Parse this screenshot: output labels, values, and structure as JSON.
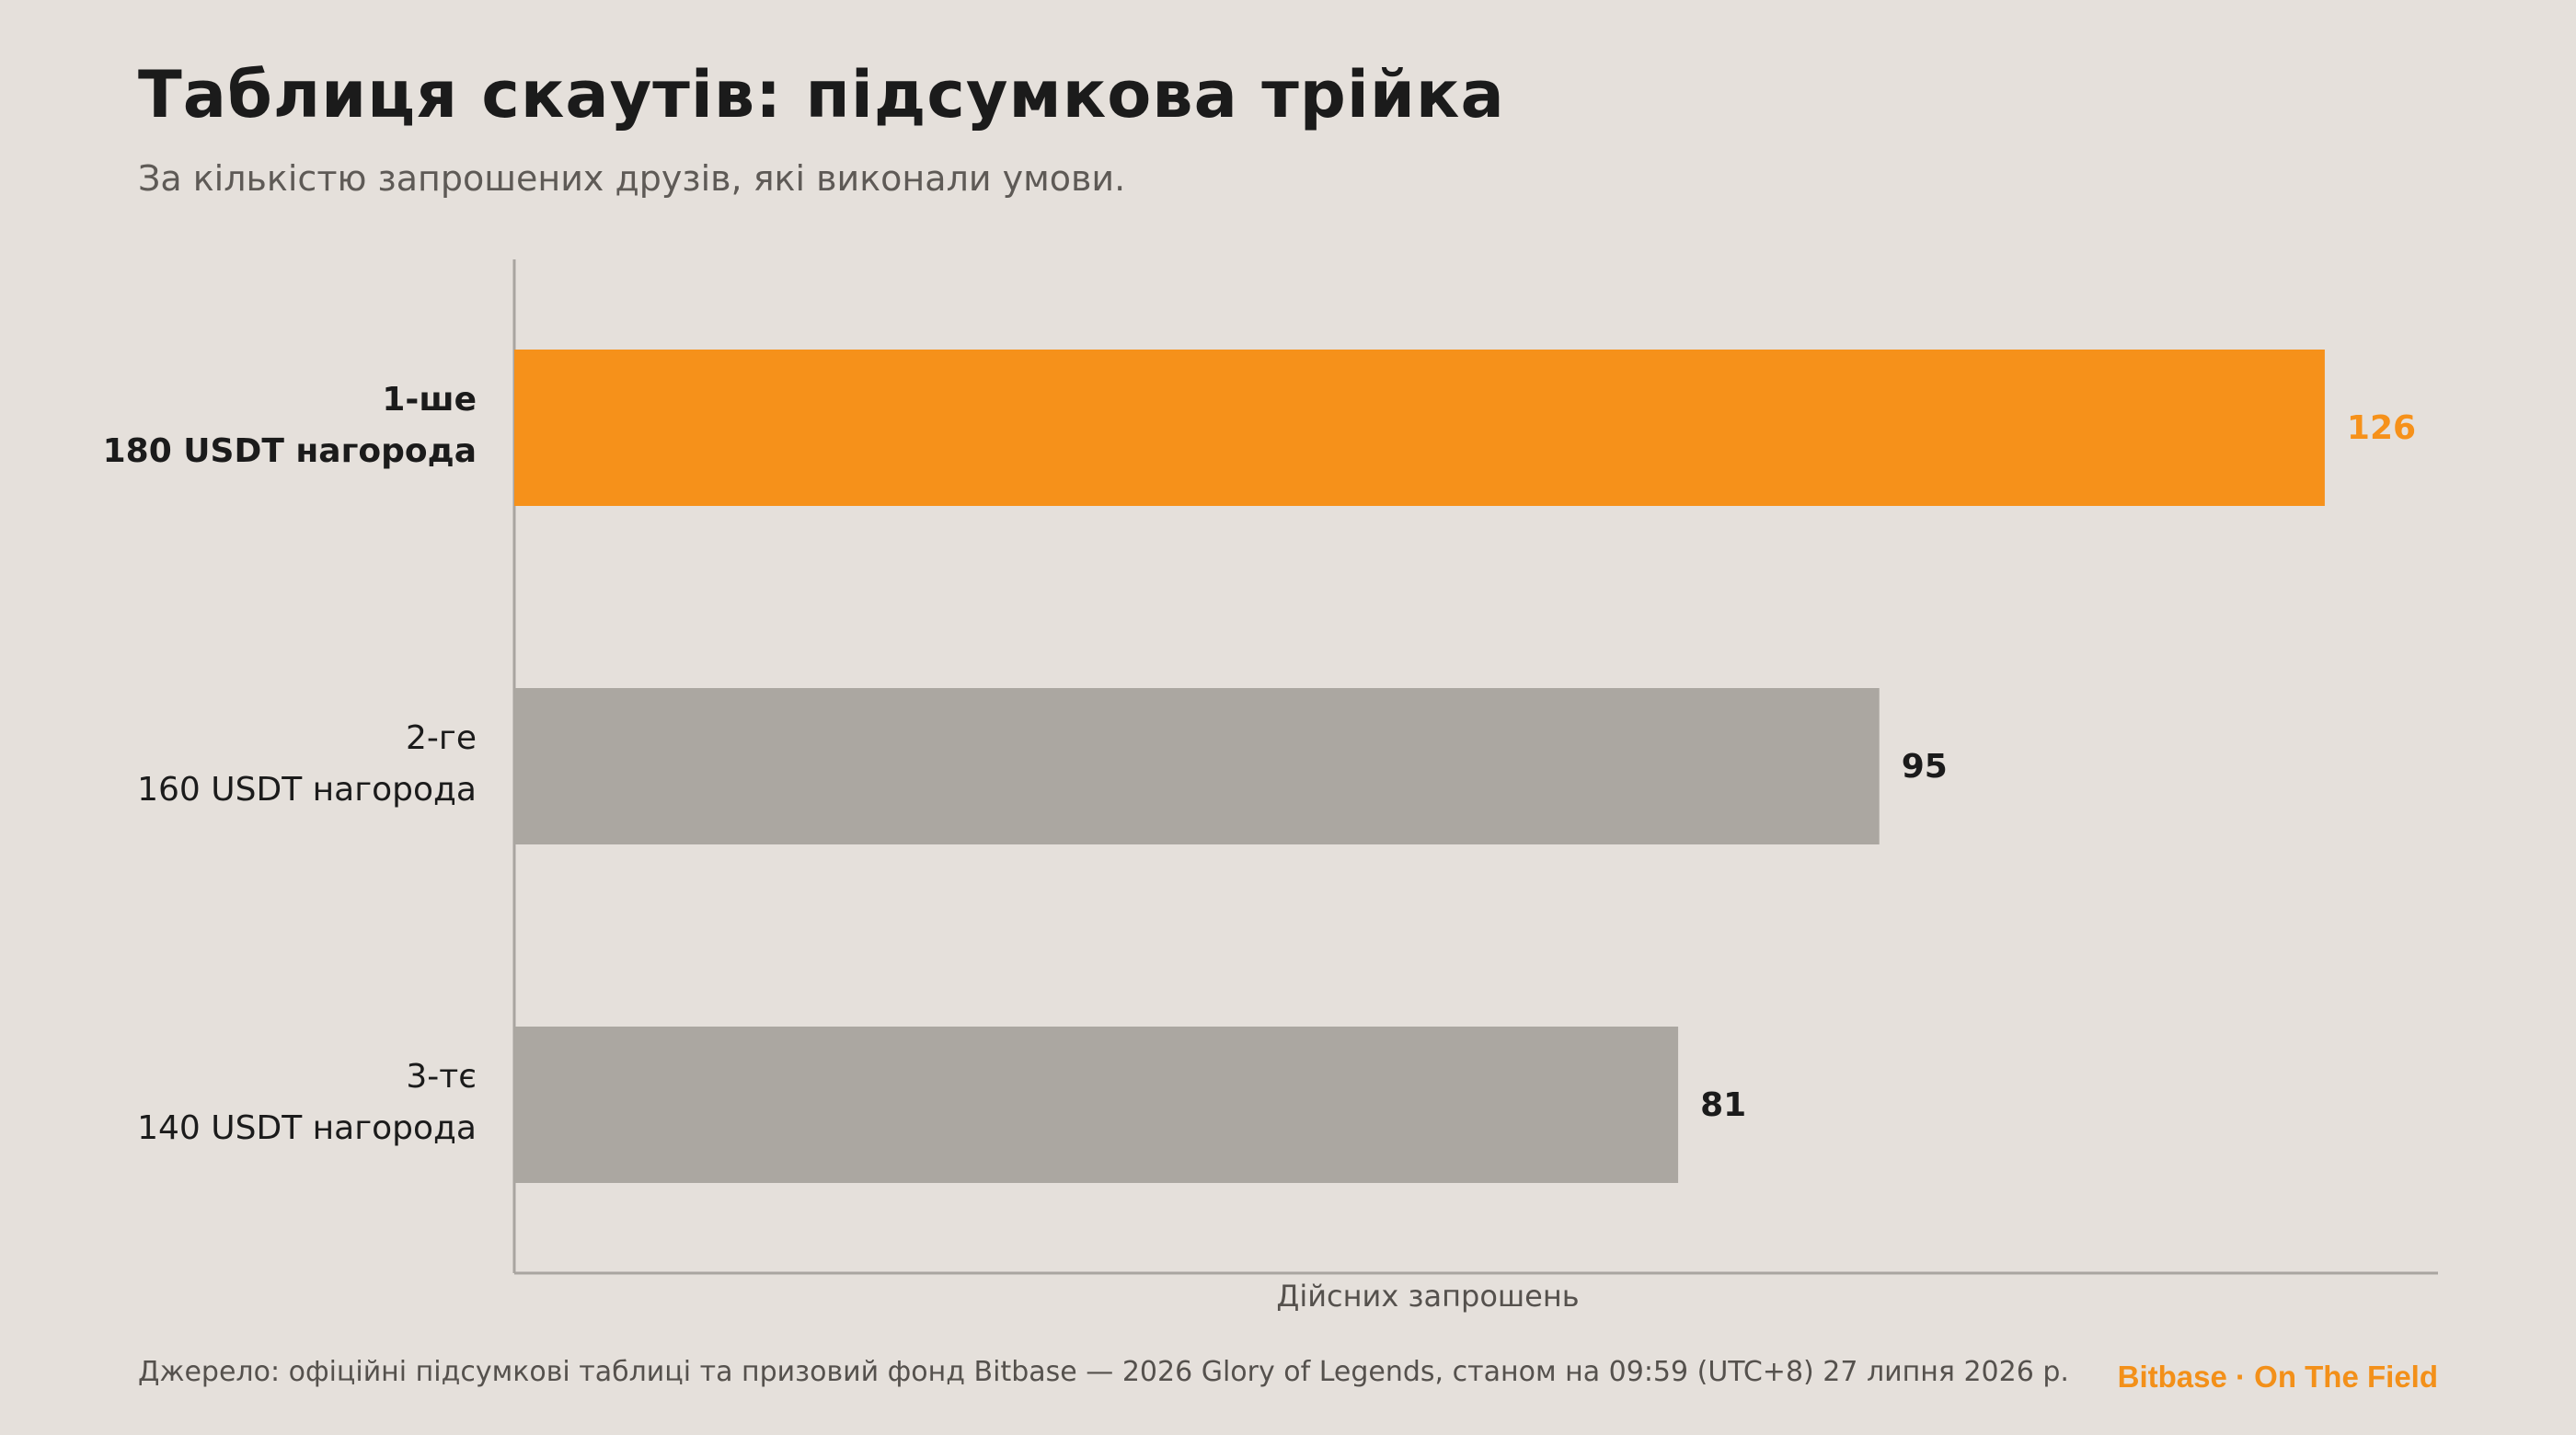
{
  "header": {
    "title": "Таблиця скаутів: підсумкова трійка",
    "subtitle": "За кількістю запрошених друзів, які виконали умови."
  },
  "footer": {
    "source": "Джерело: офіційні підсумкові таблиці та призовий фонд Bitbase — 2026 Glory of Legends, станом на 09:59 (UTC+8) 27 липня 2026 р.",
    "brand": "Bitbase · On The Field"
  },
  "colors": {
    "highlight": "#f6911a",
    "bar": "#aba7a1",
    "axis": "#a9a5a0"
  },
  "chart_data": {
    "type": "bar",
    "orientation": "horizontal",
    "xlabel": "Дійсних запрошень",
    "xlim": [
      0,
      131
    ],
    "grid": false,
    "categories": [
      {
        "rank": "1-ше",
        "reward": "180 USDT нагорода",
        "highlight": true
      },
      {
        "rank": "2-ге",
        "reward": "160 USDT нагорода",
        "highlight": false
      },
      {
        "rank": "3-тє",
        "reward": "140 USDT нагорода",
        "highlight": false
      }
    ],
    "values": [
      126,
      95,
      81
    ]
  }
}
